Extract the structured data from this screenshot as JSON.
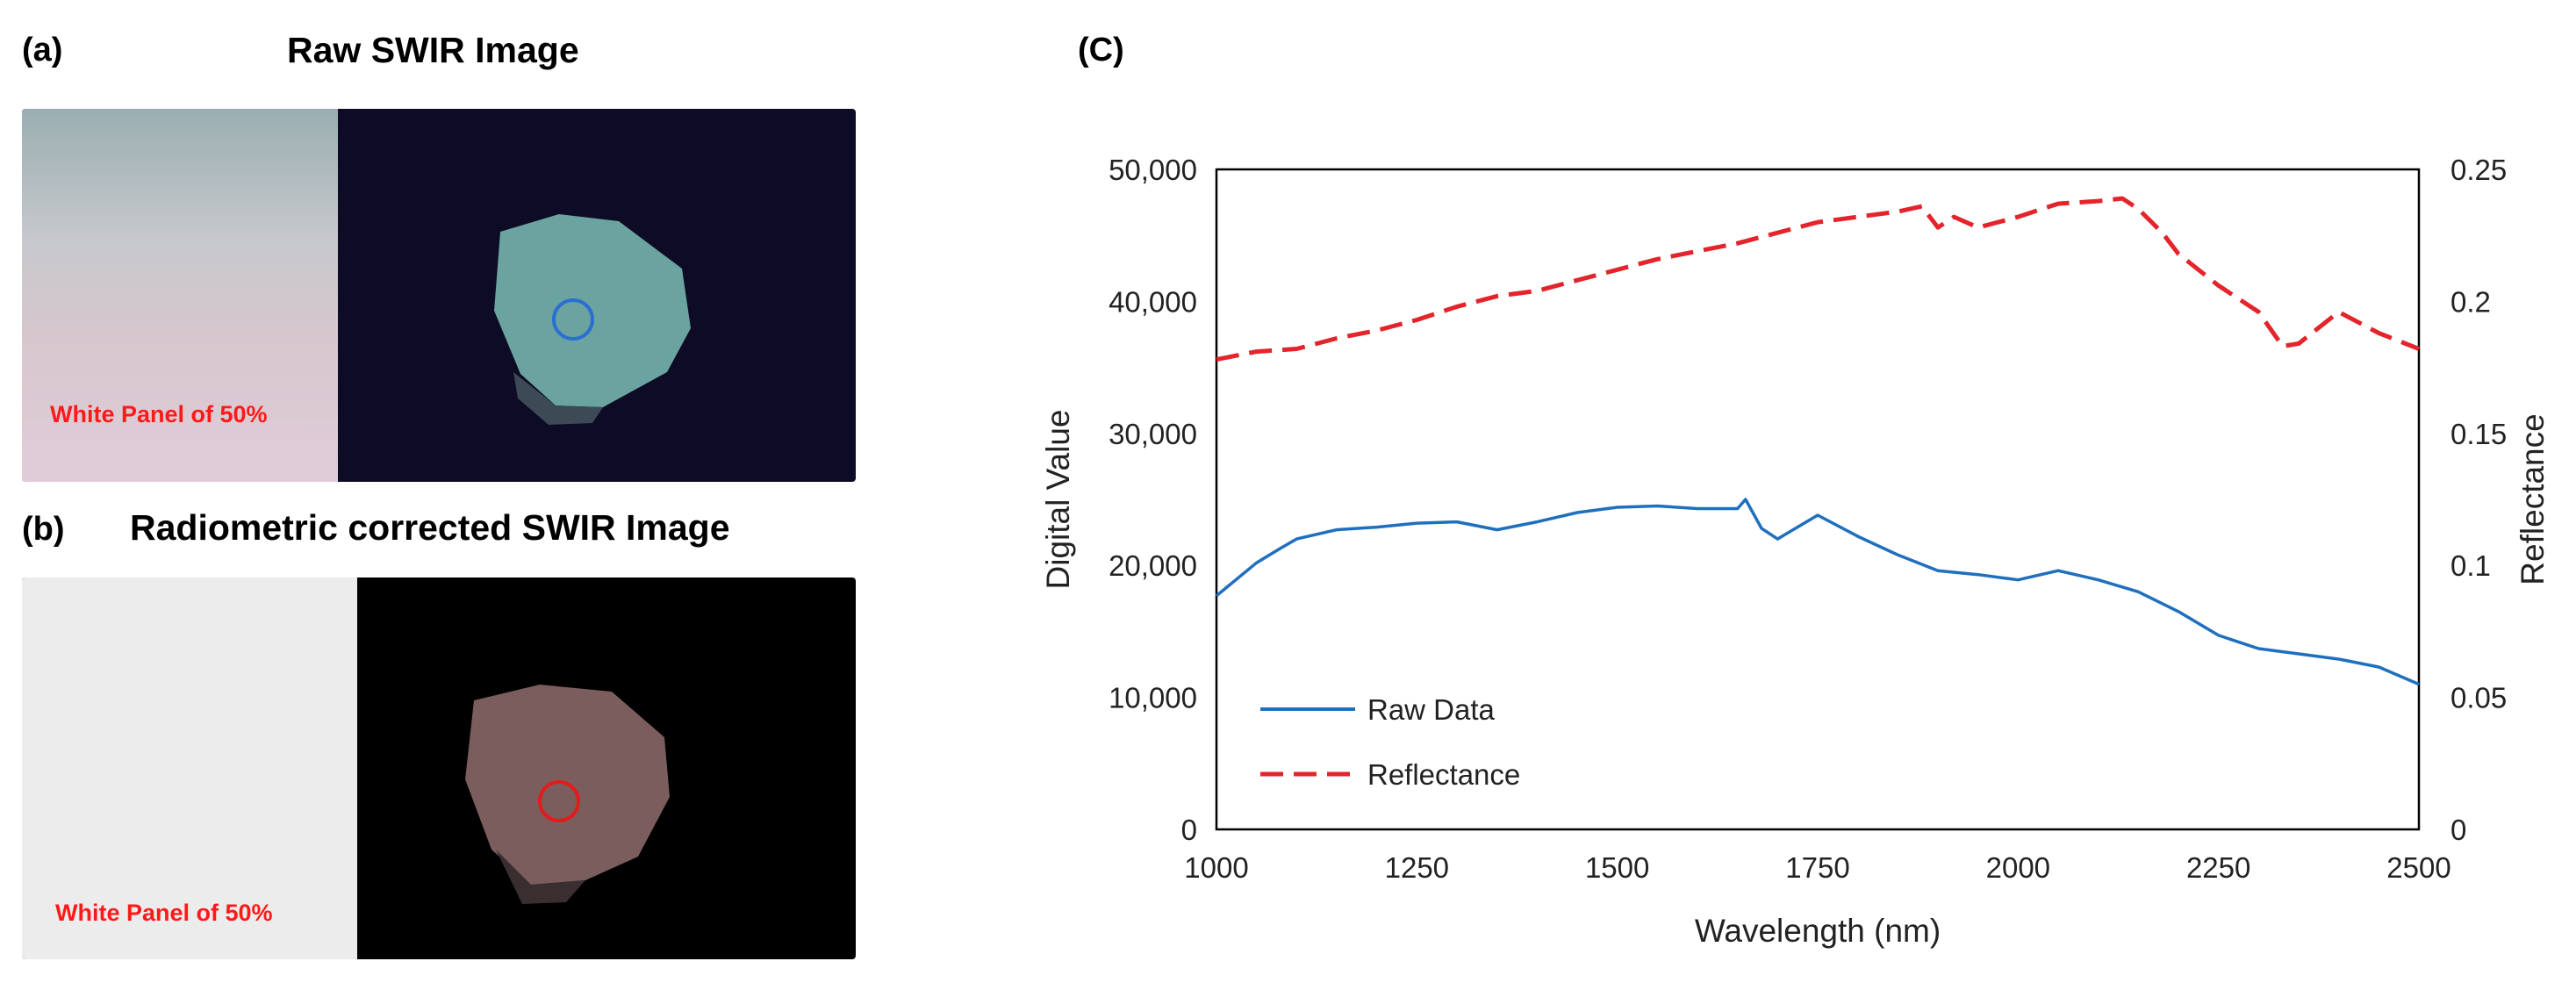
{
  "panel_a": {
    "label": "(a)",
    "title": "Raw SWIR Image",
    "panel_text": "White Panel of 50%"
  },
  "panel_b": {
    "label": "(b)",
    "title": "Radiometric corrected SWIR Image",
    "panel_text": "White Panel of 50%"
  },
  "panel_c": {
    "label": "(C)"
  },
  "colors": {
    "raw": "#1f6fbf",
    "reflectance": "#e3242b",
    "marker_a": "#2a6fd1",
    "marker_b": "#e31b1b"
  },
  "chart_data": {
    "type": "line",
    "xlabel": "Wavelength (nm)",
    "ylabel": "Digital Value",
    "y2label": "Reflectance",
    "xlim": [
      1000,
      2500
    ],
    "ylim": [
      0,
      50000
    ],
    "y2lim": [
      0,
      0.25
    ],
    "xticks": [
      "1000",
      "1250",
      "1500",
      "1750",
      "2000",
      "2250",
      "2500"
    ],
    "yticks": [
      "0",
      "10,000",
      "20,000",
      "30,000",
      "40,000",
      "50,000"
    ],
    "y2ticks": [
      "0",
      "0.05",
      "0.1",
      "0.15",
      "0.2",
      "0.25"
    ],
    "legend_position": "bottom-left",
    "series": [
      {
        "name": "Raw Data",
        "axis": "left",
        "style": "solid",
        "x": [
          1000,
          1050,
          1080,
          1100,
          1150,
          1200,
          1250,
          1300,
          1350,
          1400,
          1450,
          1500,
          1550,
          1600,
          1650,
          1660,
          1680,
          1700,
          1750,
          1800,
          1850,
          1900,
          1950,
          2000,
          2050,
          2100,
          2150,
          2200,
          2250,
          2300,
          2350,
          2400,
          2450,
          2500
        ],
        "y": [
          17700,
          20200,
          21300,
          22000,
          22700,
          22900,
          23200,
          23300,
          22700,
          23300,
          24000,
          24400,
          24500,
          24300,
          24300,
          25000,
          22800,
          22000,
          23800,
          22200,
          20800,
          19600,
          19300,
          18900,
          19600,
          18900,
          18000,
          16500,
          14700,
          13700,
          13300,
          12900,
          12300,
          11000
        ]
      },
      {
        "name": "Reflectance",
        "axis": "right",
        "style": "dashed",
        "x": [
          1000,
          1050,
          1100,
          1150,
          1200,
          1250,
          1300,
          1350,
          1400,
          1450,
          1500,
          1550,
          1600,
          1650,
          1700,
          1750,
          1800,
          1850,
          1880,
          1900,
          1920,
          1950,
          2000,
          2050,
          2100,
          2130,
          2150,
          2180,
          2200,
          2250,
          2300,
          2330,
          2350,
          2400,
          2450,
          2500
        ],
        "y": [
          0.178,
          0.181,
          0.182,
          0.186,
          0.189,
          0.193,
          0.198,
          0.202,
          0.204,
          0.208,
          0.212,
          0.216,
          0.219,
          0.222,
          0.226,
          0.23,
          0.232,
          0.234,
          0.236,
          0.228,
          0.232,
          0.228,
          0.232,
          0.237,
          0.238,
          0.239,
          0.235,
          0.226,
          0.218,
          0.206,
          0.196,
          0.183,
          0.184,
          0.196,
          0.188,
          0.182
        ]
      }
    ]
  }
}
